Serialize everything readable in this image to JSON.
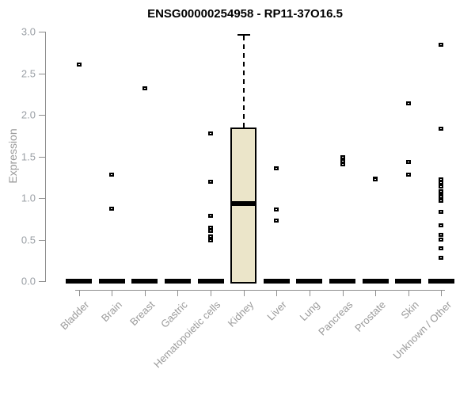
{
  "title": "ENSG00000254958 - RP11-37O16.5",
  "chart_data": {
    "type": "boxplot",
    "title": "ENSG00000254958 - RP11-37O16.5",
    "xlabel": "",
    "ylabel": "Expression",
    "ylim": [
      0.0,
      3.0
    ],
    "grid": false,
    "legend": null,
    "y_ticks": [
      0.0,
      0.5,
      1.0,
      1.5,
      2.0,
      2.5,
      3.0
    ],
    "y_tick_labels": [
      "0.0",
      "0.5",
      "1.0",
      "1.5",
      "2.0",
      "2.5",
      "3.0"
    ],
    "categories": [
      "Bladder",
      "Brain",
      "Breast",
      "Gastric",
      "Hematopoietic cells",
      "Kidney",
      "Liver",
      "Lung",
      "Pancreas",
      "Prostate",
      "Skin",
      "Unknown / Other"
    ],
    "series": [
      {
        "category": "Bladder",
        "q1": 0,
        "median": 0,
        "q3": 0,
        "whisker_low": 0,
        "whisker_high": 0,
        "outliers": [
          2.6
        ]
      },
      {
        "category": "Brain",
        "q1": 0,
        "median": 0,
        "q3": 0,
        "whisker_low": 0,
        "whisker_high": 0,
        "outliers": [
          1.28,
          0.87
        ]
      },
      {
        "category": "Breast",
        "q1": 0,
        "median": 0,
        "q3": 0,
        "whisker_low": 0,
        "whisker_high": 0,
        "outliers": [
          2.31
        ]
      },
      {
        "category": "Gastric",
        "q1": 0,
        "median": 0,
        "q3": 0,
        "whisker_low": 0,
        "whisker_high": 0,
        "outliers": []
      },
      {
        "category": "Hematopoietic cells",
        "q1": 0,
        "median": 0,
        "q3": 0,
        "whisker_low": 0,
        "whisker_high": 0,
        "outliers": [
          1.77,
          1.19,
          0.78,
          0.64,
          0.6,
          0.53,
          0.49
        ]
      },
      {
        "category": "Kidney",
        "q1": 0,
        "median": 0.93,
        "q3": 1.85,
        "whisker_low": 0,
        "whisker_high": 2.96,
        "outliers": []
      },
      {
        "category": "Liver",
        "q1": 0,
        "median": 0,
        "q3": 0,
        "whisker_low": 0,
        "whisker_high": 0,
        "outliers": [
          1.35,
          0.86,
          0.72
        ]
      },
      {
        "category": "Lung",
        "q1": 0,
        "median": 0,
        "q3": 0,
        "whisker_low": 0,
        "whisker_high": 0,
        "outliers": []
      },
      {
        "category": "Pancreas",
        "q1": 0,
        "median": 0,
        "q3": 0,
        "whisker_low": 0,
        "whisker_high": 0,
        "outliers": [
          1.49,
          1.44,
          1.4
        ]
      },
      {
        "category": "Prostate",
        "q1": 0,
        "median": 0,
        "q3": 0,
        "whisker_low": 0,
        "whisker_high": 0,
        "outliers": [
          1.23,
          1.22
        ]
      },
      {
        "category": "Skin",
        "q1": 0,
        "median": 0,
        "q3": 0,
        "whisker_low": 0,
        "whisker_high": 0,
        "outliers": [
          2.13,
          1.43,
          1.28
        ]
      },
      {
        "category": "Unknown / Other",
        "q1": 0,
        "median": 0,
        "q3": 0,
        "whisker_low": 0,
        "whisker_high": 0,
        "outliers": [
          2.84,
          1.83,
          1.22,
          1.18,
          1.13,
          1.08,
          1.03,
          1.01,
          0.96,
          0.83,
          0.67,
          0.55,
          0.5,
          0.39,
          0.28
        ]
      }
    ],
    "colors": {
      "box_fill": "#EBE5C9",
      "box_stroke": "#000000",
      "median": "#000000",
      "outlier": "#000000",
      "axis": "#8E8E8E",
      "tick_label": "#9BA0A6",
      "x_label": "#9A9A9A",
      "title": "#000000",
      "background": "#FFFFFF"
    }
  }
}
